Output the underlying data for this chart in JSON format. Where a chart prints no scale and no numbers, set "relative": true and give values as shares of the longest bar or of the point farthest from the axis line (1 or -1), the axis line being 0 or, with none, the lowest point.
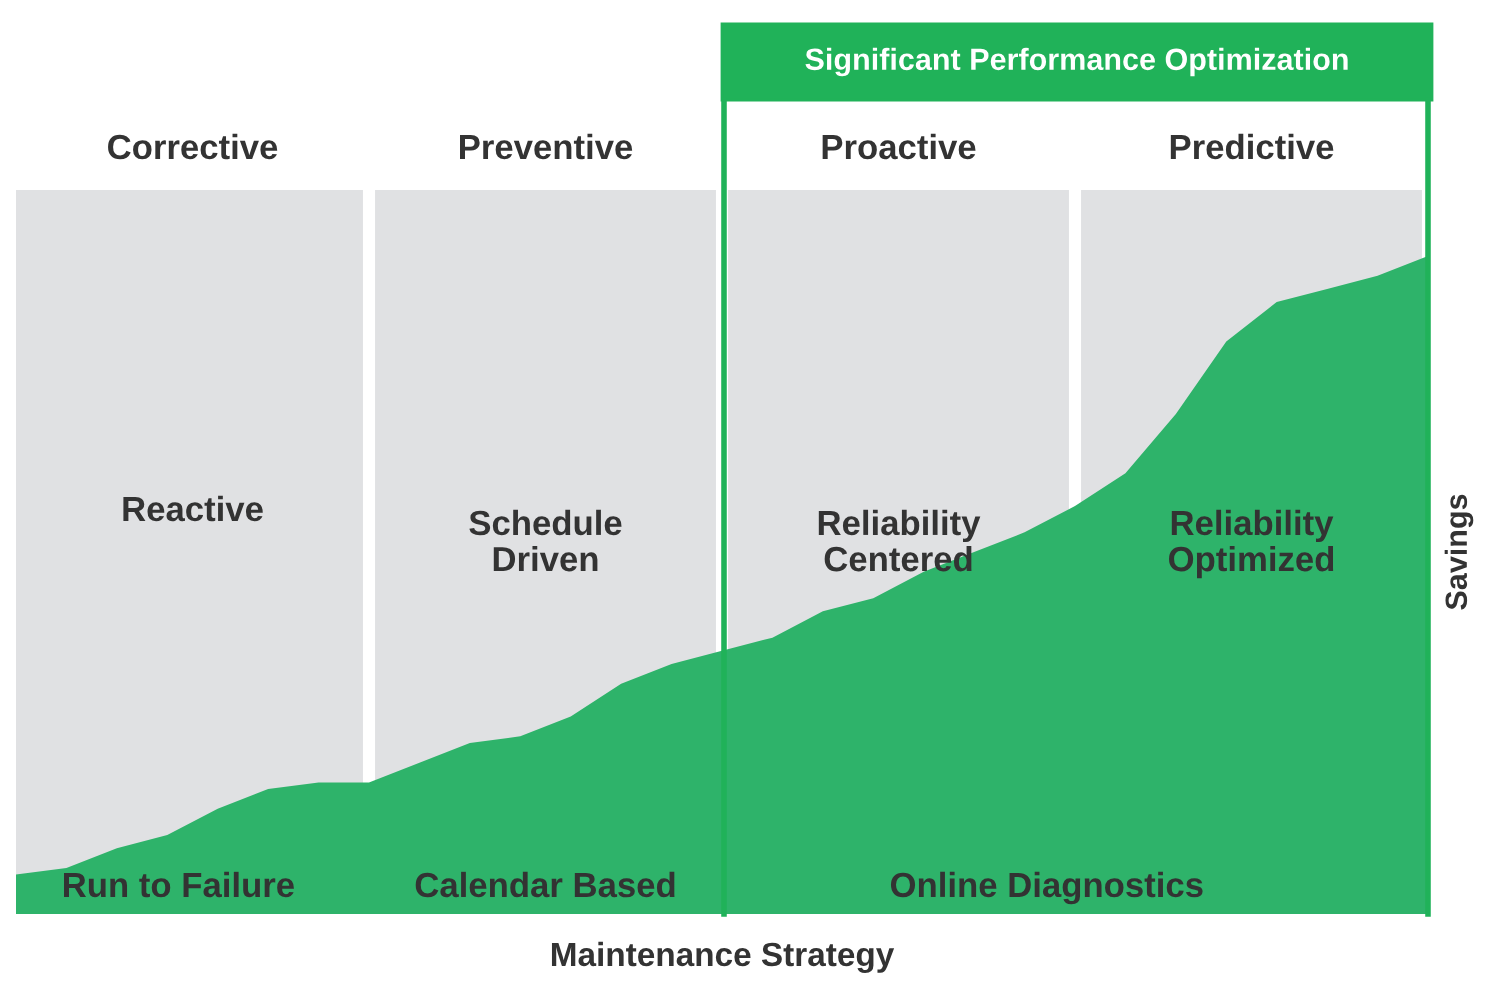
{
  "chart_data": {
    "type": "area",
    "relative": true,
    "xlabel": "Maintenance Strategy",
    "ylabel": "Savings",
    "categories": [
      null,
      null,
      null,
      null,
      null,
      null,
      null,
      null,
      null,
      null,
      null,
      null,
      null,
      null,
      null,
      null,
      null,
      null,
      null,
      null,
      null,
      null,
      null,
      null,
      null,
      null,
      null,
      null,
      null
    ],
    "series": [
      {
        "color": "#2eb36a",
        "values": [
          0.06,
          0.07,
          0.1,
          0.12,
          0.16,
          0.19,
          0.2,
          0.2,
          0.23,
          0.26,
          0.27,
          0.3,
          0.35,
          0.38,
          0.4,
          0.42,
          0.46,
          0.48,
          0.52,
          0.55,
          0.58,
          0.62,
          0.67,
          0.76,
          0.87,
          0.93,
          0.95,
          0.97,
          1.0
        ]
      }
    ],
    "annotations": [
      "Corrective",
      "Preventive",
      "Proactive",
      "Predictive",
      "Reactive",
      "Schedule\nDriven",
      "Reliability\nCentered",
      "Reliability\nOptimized",
      "Run to Failure",
      "Calendar Based",
      "Online Diagnostics",
      "Significant Performance Optimization"
    ],
    "legend": false
  }
}
